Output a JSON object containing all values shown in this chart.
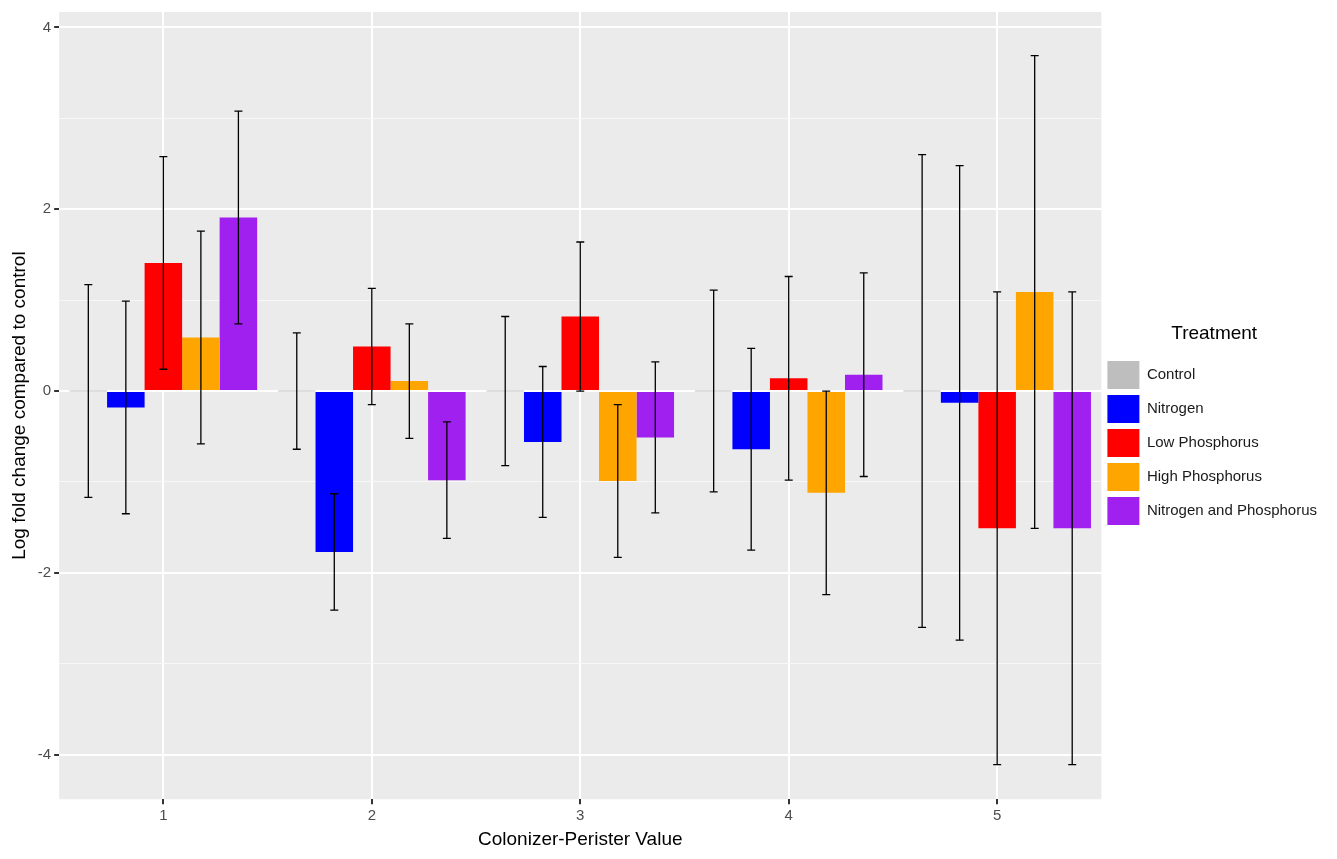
{
  "chart_data": {
    "type": "bar",
    "xlabel": "Colonizer-Perister Value",
    "ylabel": "Log fold change compared to control",
    "legend_title": "Treatment",
    "legend": "right",
    "grid": true,
    "categories": [
      "1",
      "2",
      "3",
      "4",
      "5"
    ],
    "ylim": [
      -4.49,
      4.17
    ],
    "yticks": [
      -4,
      {
        "value": -3,
        "label": null
      },
      -2,
      {
        "value": -1,
        "label": null
      },
      0,
      {
        "value": 1,
        "label": null
      },
      2,
      {
        "value": 3,
        "label": null
      },
      4
    ],
    "series": [
      {
        "name": "Control",
        "color": "#bebebe",
        "values": [
          0,
          0,
          0,
          0,
          0
        ],
        "errors": [
          1.17,
          0.64,
          0.82,
          1.11,
          2.6
        ]
      },
      {
        "name": "Nitrogen",
        "color": "#0000ff",
        "values": [
          -0.18,
          -1.77,
          -0.56,
          -0.64,
          -0.13
        ],
        "errors": [
          1.17,
          0.64,
          0.83,
          1.11,
          2.61
        ]
      },
      {
        "name": "Low Phosphorus",
        "color": "#ff0000",
        "values": [
          1.41,
          0.49,
          0.82,
          0.14,
          -1.51
        ],
        "errors": [
          1.17,
          0.64,
          0.82,
          1.12,
          2.6
        ]
      },
      {
        "name": "High Phosphorus",
        "color": "#ffa500",
        "values": [
          0.59,
          0.11,
          -0.99,
          -1.12,
          1.09
        ],
        "errors": [
          1.17,
          0.63,
          0.84,
          1.12,
          2.6
        ]
      },
      {
        "name": "Nitrogen and Phosphorus",
        "color": "#a020f0",
        "values": [
          1.91,
          -0.98,
          -0.51,
          0.18,
          -1.51
        ],
        "errors": [
          1.17,
          0.64,
          0.83,
          1.12,
          2.6
        ]
      }
    ]
  }
}
